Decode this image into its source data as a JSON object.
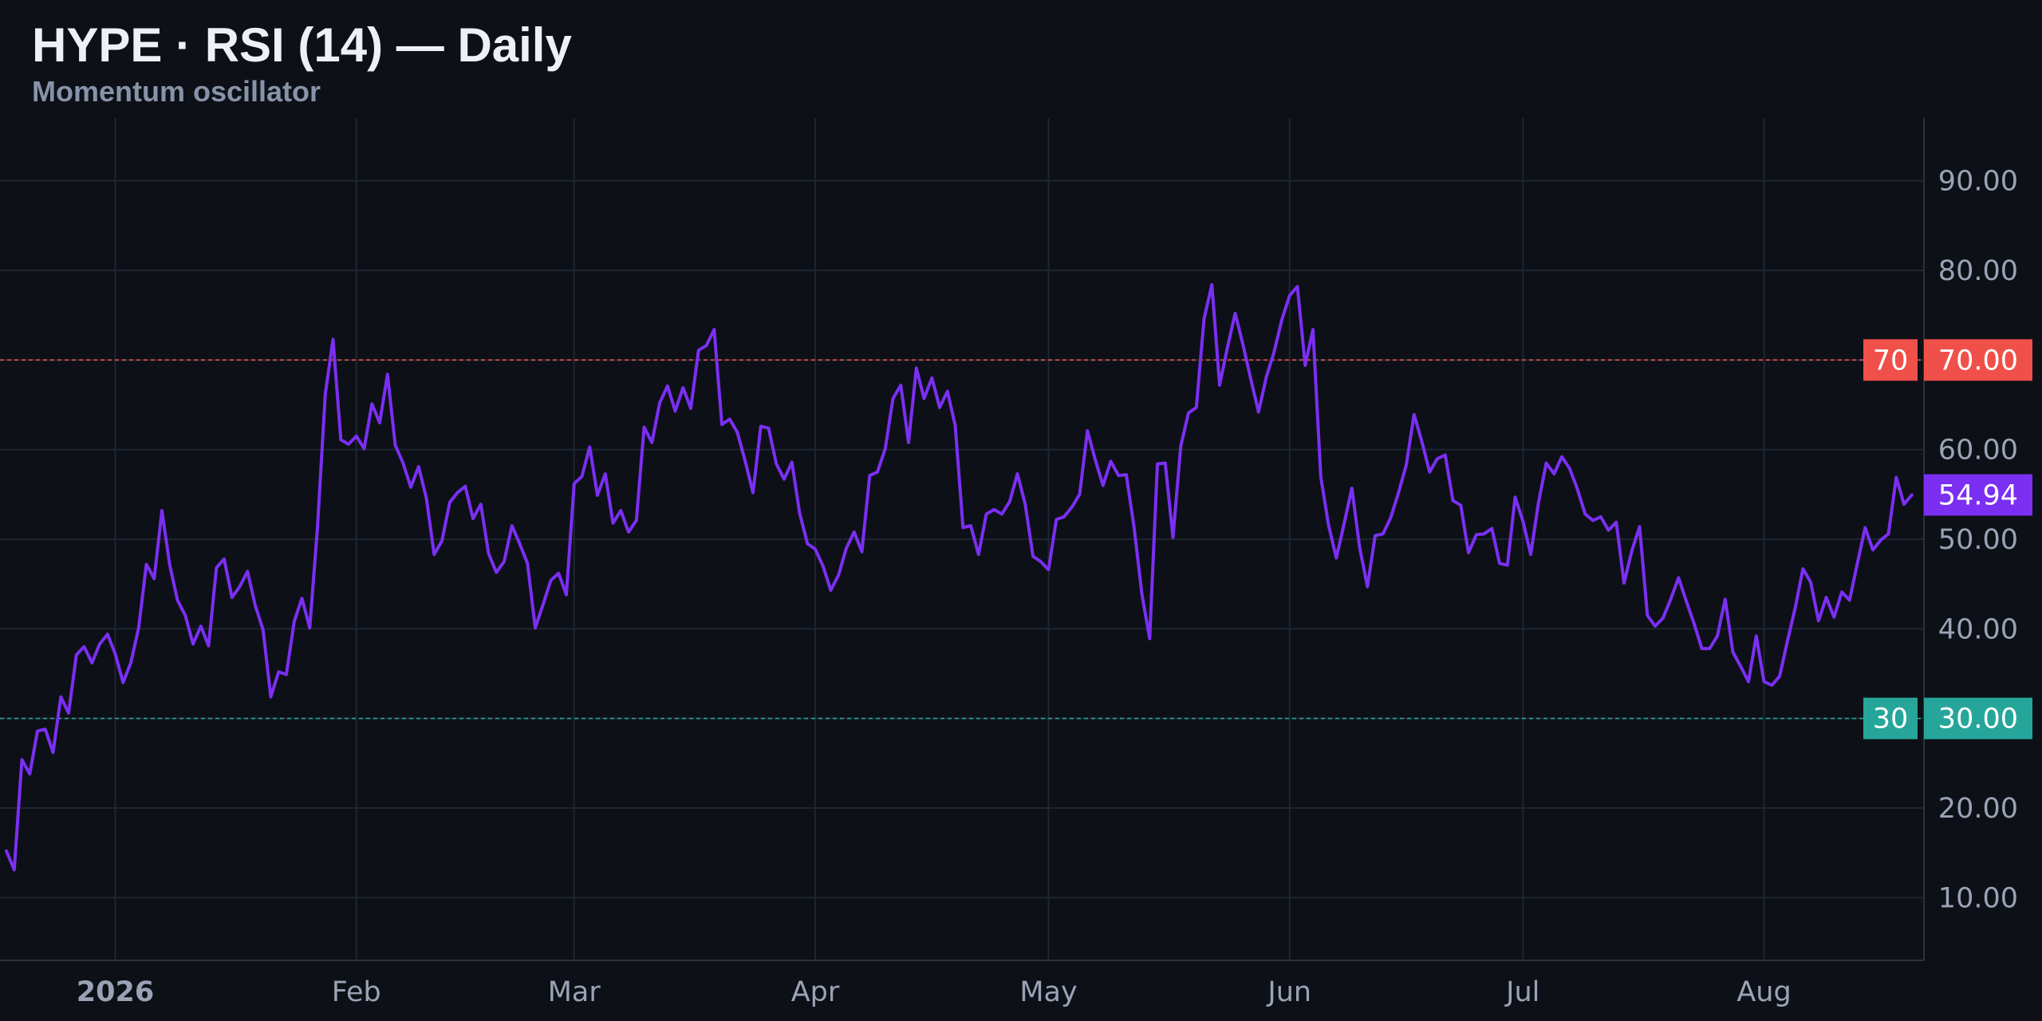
{
  "header": {
    "title": "HYPE · RSI (14) — Daily",
    "subtitle": "Momentum oscillator"
  },
  "colors": {
    "background": "#0d1017",
    "grid": "#1e2630",
    "rsi_line": "#7b2ff2",
    "overbought": "#f0504a",
    "oversold": "#26a69a",
    "axis_text": "#9aa3b5"
  },
  "chart_data": {
    "type": "line",
    "series": [
      {
        "name": "RSI (14)",
        "start_date": "2025-12-18",
        "interval": "1 day",
        "values": [
          15.2,
          13.1,
          25.4,
          23.8,
          28.6,
          28.8,
          26.2,
          32.4,
          30.6,
          37.1,
          38.0,
          36.2,
          38.3,
          39.4,
          37.2,
          34.0,
          36.2,
          40.1,
          47.2,
          45.6,
          53.2,
          47.1,
          43.2,
          41.5,
          38.3,
          40.3,
          38.1,
          46.8,
          47.8,
          43.5,
          44.7,
          46.4,
          42.6,
          39.9,
          32.4,
          35.2,
          34.9,
          40.8,
          43.4,
          40.1,
          51.3,
          66.2,
          72.3,
          61.1,
          60.6,
          61.5,
          60.1,
          65.1,
          63.0,
          68.4,
          60.5,
          58.5,
          55.8,
          58.1,
          54.6,
          48.3,
          49.8,
          54.1,
          55.2,
          55.9,
          52.3,
          53.9,
          48.4,
          46.3,
          47.5,
          51.5,
          49.5,
          47.3,
          40.1,
          42.7,
          45.4,
          46.2,
          43.8,
          56.2,
          57.0,
          60.3,
          54.9,
          57.3,
          51.8,
          53.2,
          50.8,
          52.1,
          62.5,
          60.8,
          65.2,
          67.1,
          64.3,
          66.9,
          64.6,
          71.1,
          71.6,
          73.4,
          62.8,
          63.4,
          61.9,
          58.7,
          55.2,
          62.6,
          62.4,
          58.4,
          56.7,
          58.6,
          52.9,
          49.5,
          48.9,
          47.0,
          44.3,
          46.0,
          49.0,
          50.8,
          48.6,
          57.1,
          57.5,
          60.1,
          65.7,
          67.2,
          60.8,
          69.1,
          65.7,
          68.0,
          64.7,
          66.5,
          62.7,
          51.3,
          51.5,
          48.3,
          52.8,
          53.3,
          52.8,
          54.2,
          57.3,
          53.9,
          48.1,
          47.5,
          46.6,
          52.2,
          52.5,
          53.6,
          55.0,
          62.1,
          58.9,
          56.0,
          58.7,
          57.1,
          57.2,
          51.3,
          43.9,
          38.9,
          58.4,
          58.5,
          50.2,
          60.4,
          64.1,
          64.7,
          74.6,
          78.4,
          67.2,
          71.4,
          75.2,
          71.7,
          67.9,
          64.2,
          68.1,
          70.9,
          74.5,
          77.2,
          78.2,
          69.4,
          73.4,
          57.0,
          51.6,
          47.9,
          51.7,
          55.7,
          49.1,
          44.7,
          50.4,
          50.6,
          52.4,
          55.2,
          58.3,
          63.9,
          60.9,
          57.5,
          59.0,
          59.4,
          54.3,
          53.8,
          48.5,
          50.5,
          50.6,
          51.2,
          47.3,
          47.1,
          54.7,
          52.0,
          48.3,
          54.1,
          58.5,
          57.3,
          59.2,
          57.9,
          55.6,
          52.8,
          52.1,
          52.5,
          51.0,
          51.9,
          45.1,
          48.7,
          51.4,
          41.5,
          40.3,
          41.2,
          43.3,
          45.7,
          43.1,
          40.6,
          37.8,
          37.8,
          39.2,
          43.3,
          37.4,
          35.8,
          34.1,
          39.2,
          34.1,
          33.7,
          34.7,
          38.6,
          42.3,
          46.7,
          45.2,
          40.9,
          43.5,
          41.3,
          44.1,
          43.2,
          47.3,
          51.3,
          48.8,
          49.9,
          50.6,
          56.9,
          53.9,
          54.94
        ]
      }
    ],
    "x_axis": {
      "ticks": [
        {
          "date": "2026-01-01",
          "label": "2026",
          "bold": true
        },
        {
          "date": "2026-02-01",
          "label": "Feb"
        },
        {
          "date": "2026-03-01",
          "label": "Mar"
        },
        {
          "date": "2026-04-01",
          "label": "Apr"
        },
        {
          "date": "2026-05-01",
          "label": "May"
        },
        {
          "date": "2026-06-01",
          "label": "Jun"
        },
        {
          "date": "2026-07-01",
          "label": "Jul"
        },
        {
          "date": "2026-08-01",
          "label": "Aug"
        }
      ]
    },
    "y_axis": {
      "side": "right",
      "range": [
        3,
        97
      ],
      "ticks": [
        10,
        20,
        30,
        40,
        50,
        60,
        70,
        80,
        90
      ],
      "tick_labels": [
        "10.00",
        "20.00",
        "30.00",
        "40.00",
        "50.00",
        "60.00",
        "70.00",
        "80.00",
        "90.00"
      ]
    },
    "reference_lines": [
      {
        "value": 70,
        "label": "70",
        "axis_label": "70.00",
        "color": "#f0504a",
        "style": "dashed"
      },
      {
        "value": 30,
        "label": "30",
        "axis_label": "30.00",
        "color": "#26a69a",
        "style": "dashed"
      }
    ],
    "last_value": {
      "value": 54.94,
      "label": "54.94",
      "color": "#7b2ff2"
    },
    "grid": true
  }
}
